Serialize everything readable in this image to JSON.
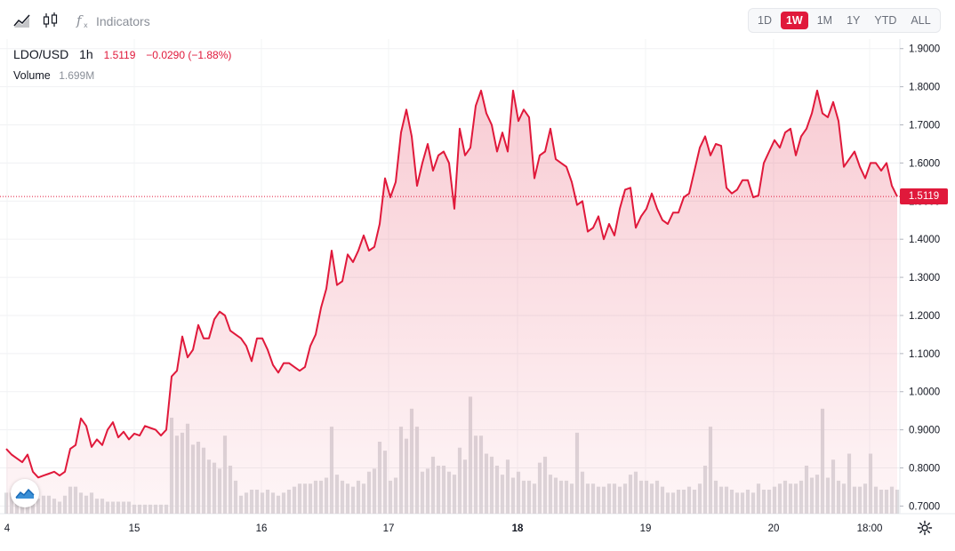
{
  "toolbar": {
    "icons": [
      "area-chart-icon",
      "candlestick-icon",
      "fx-icon"
    ],
    "indicators_label": "Indicators",
    "timeframes": [
      "1D",
      "1W",
      "1M",
      "1Y",
      "YTD",
      "ALL"
    ],
    "active_timeframe": "1W"
  },
  "legend": {
    "symbol": "LDO/USD",
    "interval": "1h",
    "price": "1.5119",
    "change": "−0.0290 (−1.88%)",
    "volume_label": "Volume",
    "volume_value": "1.699M"
  },
  "price_tag": "1.5119",
  "colors": {
    "line": "#e0193b",
    "fill": "#fbd9df",
    "volume": "#d6d6d9",
    "accent": "#e0193b"
  },
  "chart_data": {
    "type": "area",
    "title": "",
    "xlabel": "",
    "ylabel": "",
    "ylim": [
      0.68,
      1.925
    ],
    "y_ticks": [
      "1.9000",
      "1.8000",
      "1.7000",
      "1.6000",
      "1.5000",
      "1.4000",
      "1.3000",
      "1.2000",
      "1.1000",
      "1.0000",
      "0.9000",
      "0.8000",
      "0.7000"
    ],
    "x_ticks": [
      "4",
      "15",
      "16",
      "17",
      "18",
      "19",
      "20",
      "18:00"
    ],
    "grid": true,
    "last_price": 1.5119,
    "series": [
      {
        "values": [
          0.85,
          0.835,
          0.825,
          0.815,
          0.835,
          0.79,
          0.775,
          0.78,
          0.785,
          0.79,
          0.78,
          0.79,
          0.85,
          0.86,
          0.93,
          0.91,
          0.855,
          0.875,
          0.86,
          0.9,
          0.92,
          0.88,
          0.895,
          0.875,
          0.89,
          0.885,
          0.91,
          0.905,
          0.9,
          0.885,
          0.9,
          1.04,
          1.055,
          1.145,
          1.09,
          1.11,
          1.175,
          1.14,
          1.14,
          1.19,
          1.21,
          1.2,
          1.16,
          1.15,
          1.14,
          1.12,
          1.08,
          1.14,
          1.14,
          1.11,
          1.07,
          1.05,
          1.075,
          1.075,
          1.065,
          1.055,
          1.065,
          1.12,
          1.15,
          1.22,
          1.27,
          1.37,
          1.28,
          1.29,
          1.36,
          1.34,
          1.37,
          1.41,
          1.37,
          1.38,
          1.44,
          1.56,
          1.51,
          1.55,
          1.68,
          1.74,
          1.67,
          1.54,
          1.6,
          1.65,
          1.58,
          1.62,
          1.63,
          1.6,
          1.48,
          1.69,
          1.62,
          1.64,
          1.75,
          1.79,
          1.73,
          1.7,
          1.63,
          1.68,
          1.63,
          1.79,
          1.71,
          1.74,
          1.72,
          1.56,
          1.62,
          1.63,
          1.69,
          1.61,
          1.6,
          1.59,
          1.55,
          1.49,
          1.5,
          1.42,
          1.43,
          1.46,
          1.4,
          1.44,
          1.41,
          1.48,
          1.53,
          1.535,
          1.43,
          1.46,
          1.48,
          1.52,
          1.48,
          1.45,
          1.44,
          1.47,
          1.47,
          1.51,
          1.52,
          1.58,
          1.64,
          1.67,
          1.62,
          1.65,
          1.645,
          1.535,
          1.52,
          1.53,
          1.555,
          1.555,
          1.51,
          1.515,
          1.6,
          1.63,
          1.66,
          1.64,
          1.68,
          1.69,
          1.62,
          1.67,
          1.69,
          1.73,
          1.79,
          1.73,
          1.72,
          1.76,
          1.71,
          1.59,
          1.61,
          1.63,
          1.59,
          1.56,
          1.6,
          1.6,
          1.58,
          1.6,
          1.54,
          1.5119
        ]
      }
    ],
    "volume": [
      0.35,
      0.35,
      0.3,
      0.35,
      0.35,
      0.3,
      0.25,
      0.3,
      0.3,
      0.25,
      0.2,
      0.3,
      0.45,
      0.45,
      0.35,
      0.3,
      0.35,
      0.25,
      0.25,
      0.2,
      0.2,
      0.2,
      0.2,
      0.2,
      0.15,
      0.15,
      0.15,
      0.15,
      0.15,
      0.15,
      0.15,
      1.6,
      1.3,
      1.35,
      1.5,
      1.15,
      1.2,
      1.1,
      0.9,
      0.85,
      0.75,
      1.3,
      0.8,
      0.55,
      0.3,
      0.35,
      0.4,
      0.4,
      0.35,
      0.4,
      0.35,
      0.3,
      0.35,
      0.4,
      0.45,
      0.5,
      0.5,
      0.5,
      0.55,
      0.55,
      0.6,
      1.45,
      0.65,
      0.55,
      0.5,
      0.45,
      0.55,
      0.5,
      0.7,
      0.75,
      1.2,
      1.05,
      0.55,
      0.6,
      1.45,
      1.25,
      1.75,
      1.45,
      0.7,
      0.75,
      0.95,
      0.8,
      0.8,
      0.7,
      0.65,
      1.1,
      0.9,
      1.95,
      1.3,
      1.3,
      1.0,
      0.95,
      0.8,
      0.65,
      0.9,
      0.6,
      0.7,
      0.55,
      0.55,
      0.5,
      0.85,
      0.95,
      0.65,
      0.6,
      0.55,
      0.55,
      0.5,
      1.35,
      0.7,
      0.5,
      0.5,
      0.45,
      0.45,
      0.5,
      0.5,
      0.45,
      0.5,
      0.65,
      0.7,
      0.55,
      0.55,
      0.5,
      0.55,
      0.45,
      0.35,
      0.35,
      0.4,
      0.4,
      0.45,
      0.4,
      0.5,
      0.8,
      1.45,
      0.55,
      0.45,
      0.45,
      0.4,
      0.35,
      0.35,
      0.4,
      0.35,
      0.5,
      0.4,
      0.4,
      0.45,
      0.5,
      0.55,
      0.5,
      0.5,
      0.55,
      0.8,
      0.6,
      0.65,
      1.75,
      0.6,
      0.9,
      0.55,
      0.5,
      1.0,
      0.45,
      0.45,
      0.5,
      1.0,
      0.45,
      0.4,
      0.4,
      0.45,
      0.4
    ]
  }
}
